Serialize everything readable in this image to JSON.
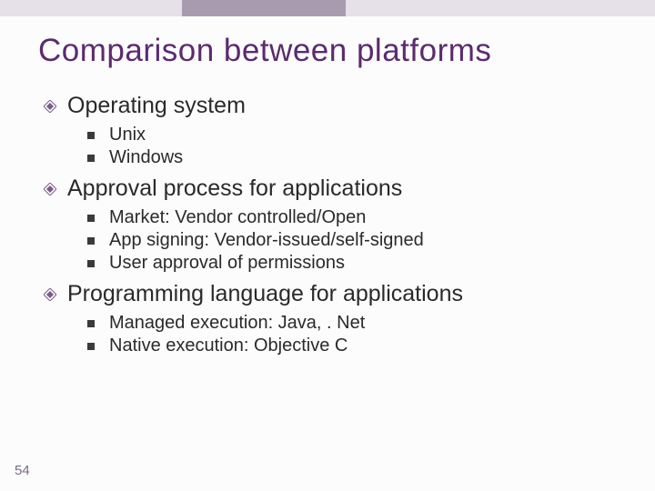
{
  "title": "Comparison between platforms",
  "title_color": "#5b2b6e",
  "title_fontsize": 35,
  "topbar": {
    "seg_colors": [
      "#e6e0e8",
      "#a89bb0",
      "#e6e0e8"
    ],
    "height": 18
  },
  "bullet_l1_icon_color": "#7a5c88",
  "bullet_l2_color": "#3a3a3a",
  "body_fontsize_l1": 25,
  "body_fontsize_l2": 20,
  "background_color": "#fdfcfd",
  "sections": [
    {
      "heading": "Operating system",
      "items": [
        "Unix",
        "Windows"
      ]
    },
    {
      "heading": "Approval process for applications",
      "items": [
        "Market: Vendor controlled/Open",
        "App signing: Vendor-issued/self-signed",
        "User approval of permissions"
      ]
    },
    {
      "heading": "Programming language for applications",
      "items": [
        "Managed execution: Java, . Net",
        "Native execution: Objective C"
      ]
    }
  ],
  "page_number": "54",
  "page_number_color": "#7a6a85"
}
